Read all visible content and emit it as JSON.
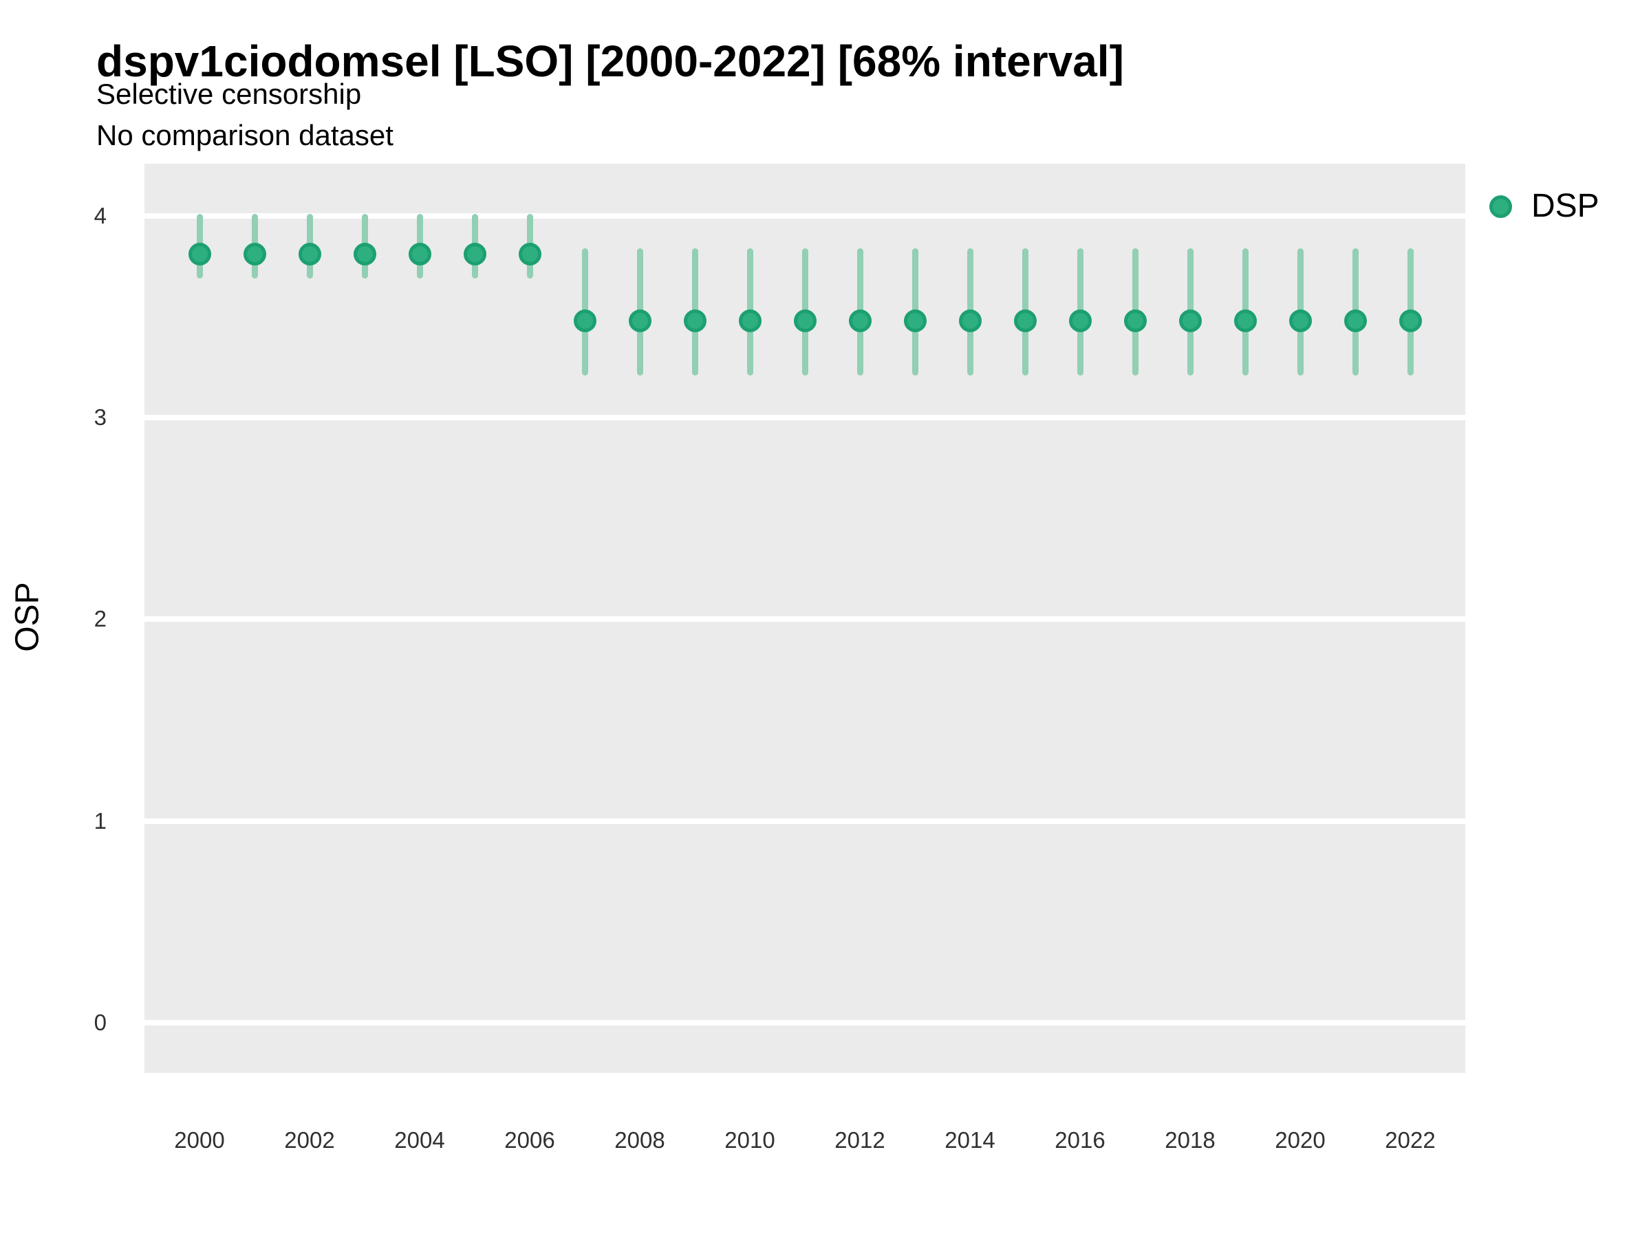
{
  "header": {
    "title": "dspv1ciodomsel [LSO] [2000-2022] [68% interval]",
    "subtitle_line1": "Selective censorship",
    "subtitle_line2": "No comparison dataset"
  },
  "legend": {
    "label": "DSP",
    "position": "right-top"
  },
  "colors": {
    "point_fill": "#2eaf80",
    "point_border": "#1ca071",
    "interval_bar": "#92cfb3",
    "panel_background": "#ebebeb",
    "gridline": "#ffffff",
    "title_text": "#000000",
    "tick_text": "#303030"
  },
  "chart_data": {
    "type": "scatter",
    "subtype": "pointrange",
    "title": "dspv1ciodomsel [LSO] [2000-2022] [68% interval]",
    "subtitle": "Selective censorship — No comparison dataset",
    "interval_label": "68% interval",
    "xlabel": "",
    "ylabel": "OSP",
    "grid": "horizontal-major-only",
    "legend_position": "right-top",
    "xlim": [
      1999,
      2023
    ],
    "ylim": [
      -0.25,
      4.26
    ],
    "x_ticks": [
      2000,
      2002,
      2004,
      2006,
      2008,
      2010,
      2012,
      2014,
      2016,
      2018,
      2020,
      2022
    ],
    "y_ticks": [
      0,
      1,
      2,
      3,
      4
    ],
    "series": [
      {
        "name": "DSP",
        "x": [
          2000,
          2001,
          2002,
          2003,
          2004,
          2005,
          2006,
          2007,
          2008,
          2009,
          2010,
          2011,
          2012,
          2013,
          2014,
          2015,
          2016,
          2017,
          2018,
          2019,
          2020,
          2021,
          2022
        ],
        "y": [
          3.81,
          3.81,
          3.81,
          3.81,
          3.81,
          3.81,
          3.81,
          3.48,
          3.48,
          3.48,
          3.48,
          3.48,
          3.48,
          3.48,
          3.48,
          3.48,
          3.48,
          3.48,
          3.48,
          3.48,
          3.48,
          3.48,
          3.48
        ],
        "low": [
          3.69,
          3.69,
          3.69,
          3.69,
          3.69,
          3.69,
          3.69,
          3.21,
          3.21,
          3.21,
          3.21,
          3.21,
          3.21,
          3.21,
          3.21,
          3.21,
          3.21,
          3.21,
          3.21,
          3.21,
          3.21,
          3.21,
          3.21
        ],
        "high": [
          4.01,
          4.01,
          4.01,
          4.01,
          4.01,
          4.01,
          4.01,
          3.84,
          3.84,
          3.84,
          3.84,
          3.84,
          3.84,
          3.84,
          3.84,
          3.84,
          3.84,
          3.84,
          3.84,
          3.84,
          3.84,
          3.84,
          3.84
        ]
      }
    ]
  }
}
